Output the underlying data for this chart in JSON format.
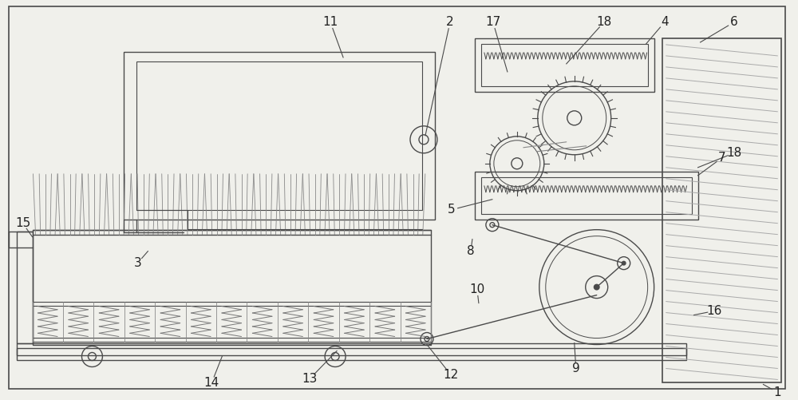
{
  "bg_color": "#f0f0eb",
  "line_color": "#4a4a4a",
  "lw": 1.0,
  "fig_width": 10.0,
  "fig_height": 5.01
}
